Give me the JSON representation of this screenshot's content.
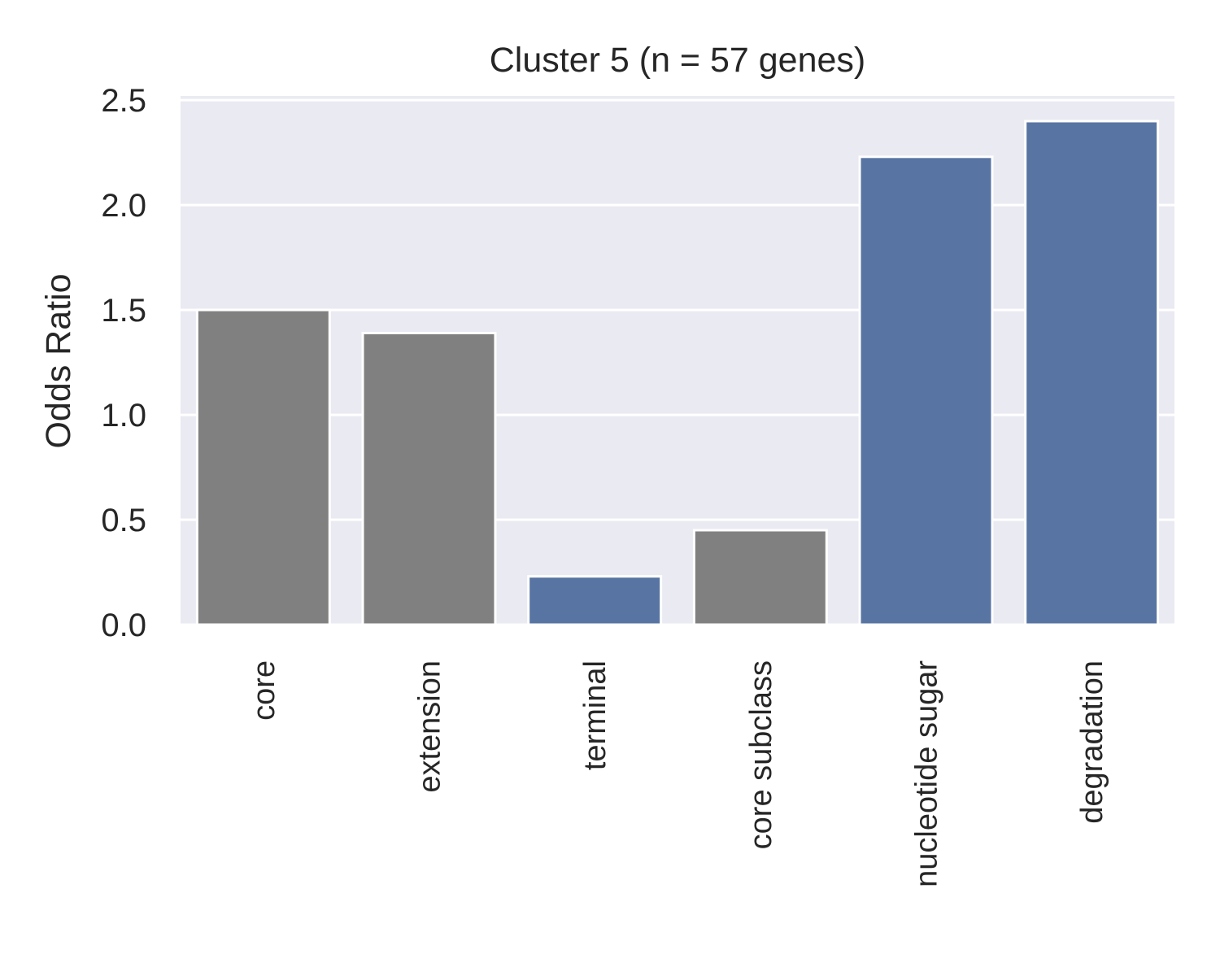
{
  "chart_data": {
    "type": "bar",
    "title": "Cluster 5 (n = 57 genes)",
    "xlabel": "",
    "ylabel": "Odds Ratio",
    "categories": [
      "core",
      "extension",
      "terminal",
      "core subclass",
      "nucleotide sugar",
      "degradation"
    ],
    "values": [
      1.5,
      1.39,
      0.23,
      0.45,
      2.23,
      2.4
    ],
    "bar_colors": [
      "#808080",
      "#808080",
      "#5874a2",
      "#808080",
      "#5874a2",
      "#5874a2"
    ],
    "ylim": [
      0,
      2.52
    ],
    "yticks": [
      "0.0",
      "0.5",
      "1.0",
      "1.5",
      "2.0",
      "2.5"
    ],
    "ytick_values": [
      0,
      0.5,
      1.0,
      1.5,
      2.0,
      2.5
    ],
    "grid": true,
    "background_color": "#eaeaf2",
    "grid_color": "#ffffff"
  }
}
